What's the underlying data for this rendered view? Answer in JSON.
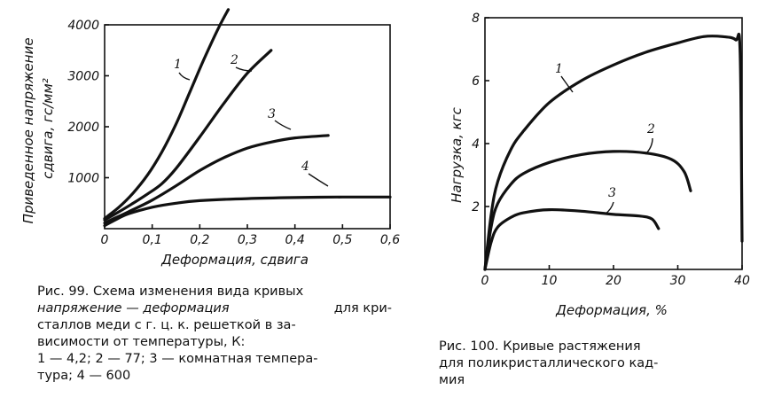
{
  "chart_data": [
    {
      "type": "line",
      "figure": "99",
      "ylabel": "Приведенное напряжение сдвига, гс/мм²",
      "xlabel": "Деформация, сдвига",
      "xlim": [
        0,
        0.6
      ],
      "ylim": [
        0,
        4000
      ],
      "x_ticks": [
        "0",
        "0,1",
        "0,2",
        "0,3",
        "0,4",
        "0,5",
        "0,6"
      ],
      "y_ticks": [
        "1000",
        "2000",
        "3000",
        "4000"
      ],
      "series": [
        {
          "name": "1",
          "x": [
            0,
            0.03,
            0.06,
            0.09,
            0.12,
            0.15,
            0.18,
            0.21,
            0.24,
            0.26
          ],
          "y": [
            200,
            420,
            700,
            1050,
            1500,
            2050,
            2700,
            3350,
            3950,
            4300
          ]
        },
        {
          "name": "2",
          "x": [
            0,
            0.03,
            0.06,
            0.09,
            0.12,
            0.15,
            0.2,
            0.25,
            0.3,
            0.35
          ],
          "y": [
            170,
            330,
            500,
            680,
            880,
            1180,
            1800,
            2450,
            3050,
            3500
          ]
        },
        {
          "name": "3",
          "x": [
            0,
            0.02,
            0.05,
            0.1,
            0.15,
            0.2,
            0.25,
            0.3,
            0.35,
            0.4,
            0.47
          ],
          "y": [
            110,
            200,
            330,
            560,
            840,
            1140,
            1390,
            1580,
            1700,
            1780,
            1830
          ]
        },
        {
          "name": "4",
          "x": [
            0,
            0.02,
            0.05,
            0.1,
            0.15,
            0.2,
            0.3,
            0.4,
            0.5,
            0.6
          ],
          "y": [
            60,
            160,
            290,
            420,
            500,
            550,
            590,
            610,
            620,
            620
          ]
        }
      ],
      "labels": [
        "1",
        "2",
        "3",
        "4"
      ]
    },
    {
      "type": "line",
      "figure": "100",
      "ylabel": "Нагрузка, кгс",
      "xlabel": "Деформация, %",
      "xlim": [
        0,
        40
      ],
      "ylim": [
        0,
        8
      ],
      "x_ticks": [
        "0",
        "10",
        "20",
        "30",
        "40"
      ],
      "y_ticks": [
        "2",
        "4",
        "6",
        "8"
      ],
      "series": [
        {
          "name": "1",
          "x": [
            0,
            1,
            2,
            4,
            6,
            10,
            15,
            20,
            25,
            30,
            34,
            37,
            39,
            39.7,
            40
          ],
          "y": [
            0,
            1.8,
            2.8,
            3.8,
            4.4,
            5.3,
            6.0,
            6.5,
            6.9,
            7.2,
            7.4,
            7.4,
            7.3,
            6.9,
            0.9
          ]
        },
        {
          "name": "2",
          "x": [
            0,
            1,
            2,
            4,
            6,
            10,
            15,
            20,
            25,
            29,
            31,
            32
          ],
          "y": [
            0,
            1.4,
            2.1,
            2.7,
            3.05,
            3.4,
            3.65,
            3.75,
            3.7,
            3.5,
            3.1,
            2.5
          ]
        },
        {
          "name": "3",
          "x": [
            0,
            1,
            2,
            4,
            6,
            10,
            15,
            20,
            24,
            26,
            27
          ],
          "y": [
            0,
            0.9,
            1.35,
            1.65,
            1.8,
            1.9,
            1.85,
            1.75,
            1.7,
            1.6,
            1.3
          ]
        }
      ],
      "labels": [
        "1",
        "2",
        "3"
      ]
    }
  ],
  "captions": {
    "left": {
      "line1": "Рис. 99. Схема изменения вида кривых",
      "line2_italic": "напряжение — деформация",
      "line2_rest": "для кри-",
      "line3": "сталлов меди с г. ц. к. решеткой в за-",
      "line4": "висимости от температуры, К:",
      "line5": "1 — 4,2; 2 — 77; 3 — комнатная темпера-",
      "line6": "тура; 4 — 600"
    },
    "right": {
      "line1": "Рис. 100. Кривые растяжения",
      "line2": "для поликристаллического кад-",
      "line3": "мия"
    }
  }
}
